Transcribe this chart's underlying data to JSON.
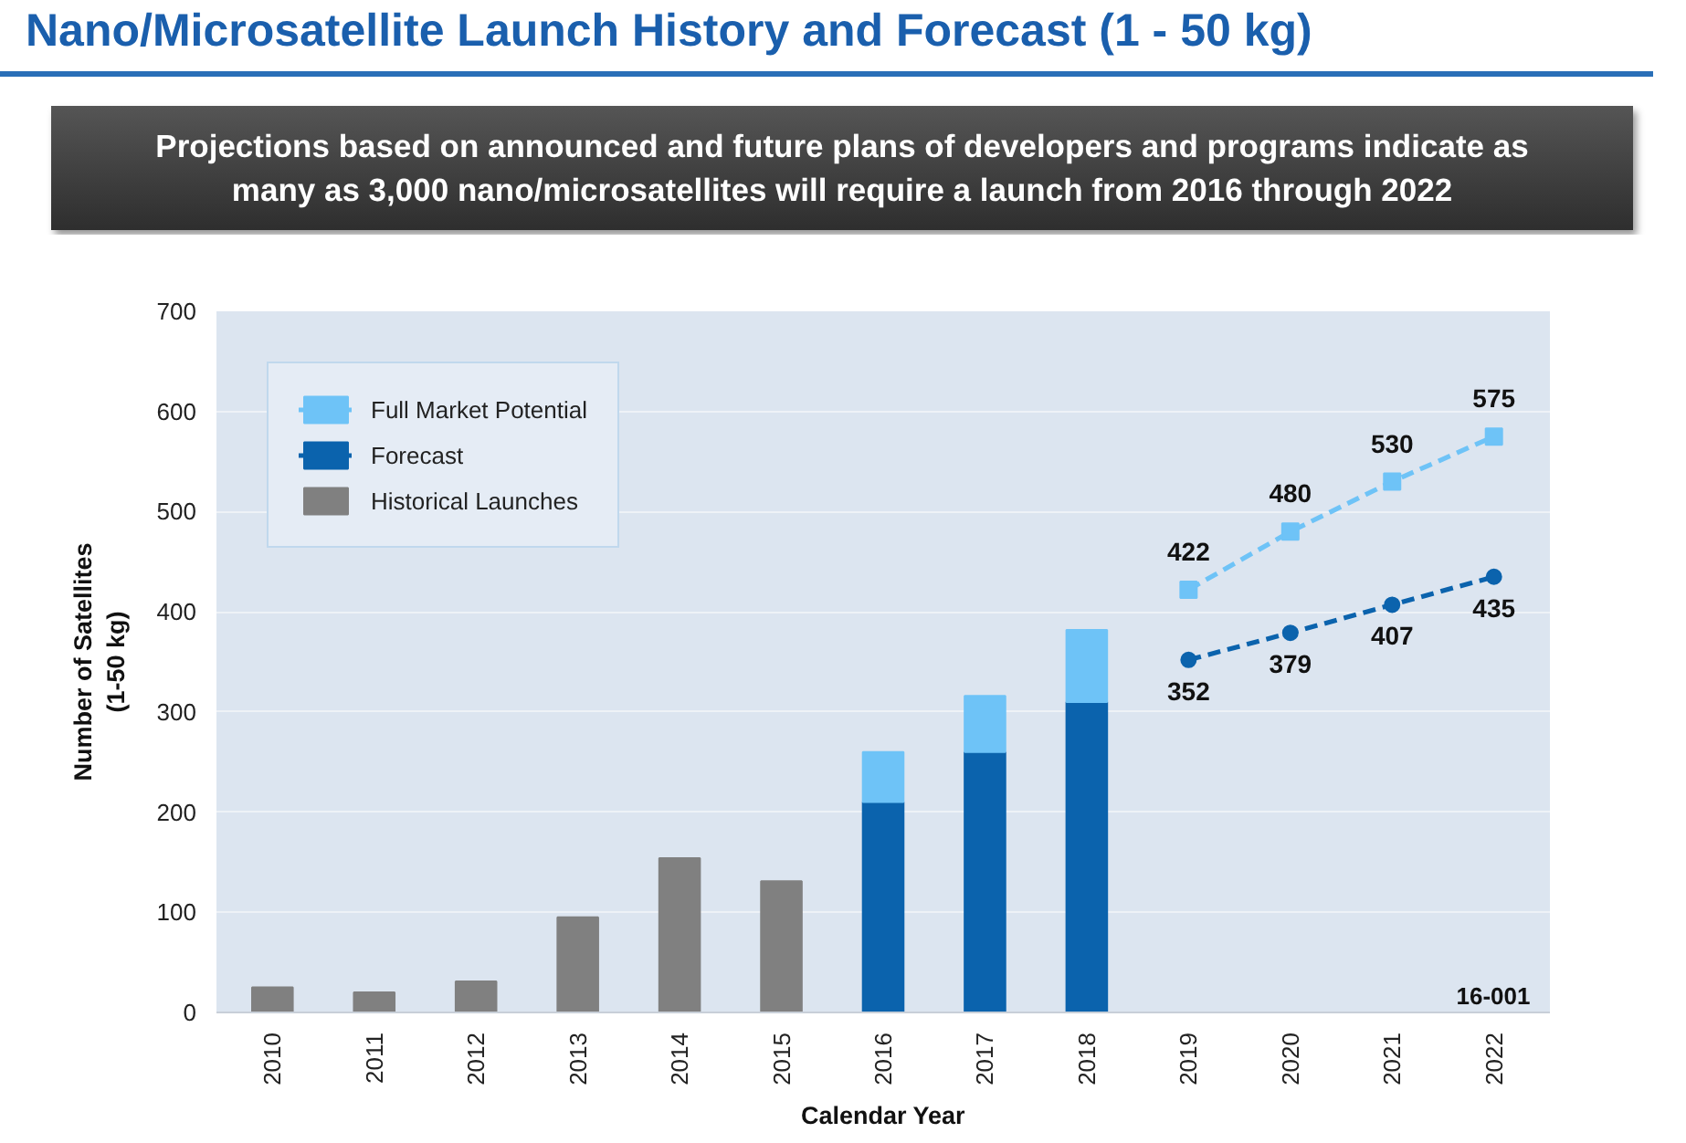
{
  "chart_data": {
    "type": "bar",
    "title": "Nano/Microsatellite Launch History and Forecast (1 - 50 kg)",
    "subtitle": "Projections based on announced and future plans of developers and programs indicate as many as 3,000 nano/microsatellites will require a launch from 2016 through 2022",
    "xlabel": "Calendar Year",
    "ylabel": "Number of Satellites\n(1-50 kg)",
    "annotations": [
      "16-001"
    ],
    "categories": [
      "2010",
      "2011",
      "2012",
      "2013",
      "2014",
      "2015",
      "2016",
      "2017",
      "2018",
      "2019",
      "2020",
      "2021",
      "2022"
    ],
    "stacked": true,
    "ylim": [
      0,
      700
    ],
    "yticks": [
      0,
      100,
      200,
      300,
      400,
      500,
      600,
      700
    ],
    "grid": "y",
    "legend": "top left",
    "series": [
      {
        "type": "line",
        "color": "#6ec3f7",
        "marker": "square",
        "line_style": "dashed",
        "values": [
          null,
          null,
          null,
          null,
          null,
          null,
          null,
          null,
          null,
          422,
          480,
          530,
          575
        ],
        "value_labels": [
          null,
          null,
          null,
          null,
          null,
          null,
          null,
          null,
          null,
          "422",
          "480",
          "530",
          "575"
        ]
      },
      {
        "type": "line",
        "color": "#0b63ad",
        "marker": "circle",
        "line_style": "dashed",
        "values": [
          null,
          null,
          null,
          null,
          null,
          null,
          null,
          null,
          null,
          352,
          379,
          407,
          435
        ],
        "value_labels": [
          null,
          null,
          null,
          null,
          null,
          null,
          null,
          null,
          null,
          "352",
          "379",
          "407",
          "435"
        ]
      },
      {
        "name": "Historical Launches",
        "color": "#808080",
        "values": [
          25,
          20,
          31,
          95,
          154,
          131,
          null,
          null,
          null,
          null,
          null,
          null,
          null
        ]
      },
      {
        "name": "Forecast",
        "color": "#0b63ad",
        "values": [
          null,
          null,
          null,
          null,
          null,
          null,
          210,
          260,
          310,
          null,
          null,
          null,
          null
        ]
      },
      {
        "name": "Full Market Potential",
        "color": "#6ec3f7",
        "values": [
          null,
          null,
          null,
          null,
          null,
          null,
          50,
          56,
          72,
          null,
          null,
          null,
          null
        ]
      }
    ]
  }
}
